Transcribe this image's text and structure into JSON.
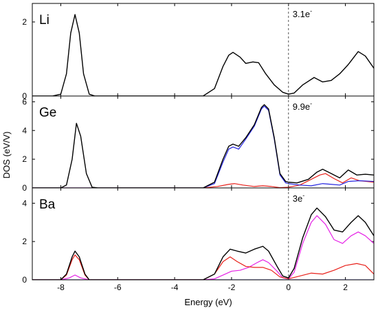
{
  "chart_data": {
    "type": "line",
    "xlabel": "Energy (eV)",
    "ylabel": "DOS (eV/V)",
    "xlim": [
      -9,
      3
    ],
    "xticks": [
      -8,
      -6,
      -4,
      -2,
      0,
      2
    ],
    "fermi_line": {
      "x": 0,
      "style": "dashed"
    },
    "series_colors": {
      "black": "#000000",
      "red": "#e8201a",
      "blue": "#2323e0",
      "magenta": "#e520e5"
    },
    "panels": [
      {
        "label": "Li",
        "electrons": "3.1e",
        "ylim": [
          0,
          2.5
        ],
        "yticks": [
          0,
          2
        ],
        "series": [
          {
            "color": "black",
            "points": [
              [
                -9,
                0
              ],
              [
                -8.3,
                0
              ],
              [
                -8.0,
                0.05
              ],
              [
                -7.8,
                0.6
              ],
              [
                -7.65,
                1.7
              ],
              [
                -7.5,
                2.2
              ],
              [
                -7.35,
                1.7
              ],
              [
                -7.2,
                0.6
              ],
              [
                -7.0,
                0.05
              ],
              [
                -6.8,
                0
              ],
              [
                -3,
                0
              ],
              [
                -2.6,
                0.2
              ],
              [
                -2.3,
                0.8
              ],
              [
                -2.1,
                1.1
              ],
              [
                -1.95,
                1.18
              ],
              [
                -1.7,
                1.05
              ],
              [
                -1.5,
                0.88
              ],
              [
                -1.25,
                0.92
              ],
              [
                -1.05,
                0.9
              ],
              [
                -0.8,
                0.6
              ],
              [
                -0.5,
                0.3
              ],
              [
                -0.2,
                0.1
              ],
              [
                0,
                0.05
              ],
              [
                0.2,
                0.08
              ],
              [
                0.5,
                0.3
              ],
              [
                0.9,
                0.5
              ],
              [
                1.2,
                0.38
              ],
              [
                1.5,
                0.42
              ],
              [
                1.8,
                0.6
              ],
              [
                2.1,
                0.85
              ],
              [
                2.45,
                1.2
              ],
              [
                2.7,
                1.08
              ],
              [
                3.0,
                0.75
              ]
            ]
          }
        ]
      },
      {
        "label": "Ge",
        "electrons": "9.9e",
        "ylim": [
          0,
          6.4
        ],
        "yticks": [
          0,
          2,
          4,
          6
        ],
        "series": [
          {
            "color": "black",
            "points": [
              [
                -9,
                0
              ],
              [
                -8.0,
                0
              ],
              [
                -7.8,
                0.2
              ],
              [
                -7.6,
                2.0
              ],
              [
                -7.45,
                4.5
              ],
              [
                -7.3,
                3.6
              ],
              [
                -7.1,
                1.0
              ],
              [
                -6.9,
                0.05
              ],
              [
                -6.7,
                0
              ],
              [
                -3.0,
                0
              ],
              [
                -2.6,
                0.4
              ],
              [
                -2.3,
                2.0
              ],
              [
                -2.1,
                2.9
              ],
              [
                -1.95,
                3.05
              ],
              [
                -1.75,
                2.9
              ],
              [
                -1.5,
                3.5
              ],
              [
                -1.2,
                4.4
              ],
              [
                -0.95,
                5.6
              ],
              [
                -0.85,
                5.8
              ],
              [
                -0.7,
                5.5
              ],
              [
                -0.5,
                3.5
              ],
              [
                -0.3,
                1.0
              ],
              [
                -0.1,
                0.45
              ],
              [
                0,
                0.4
              ],
              [
                0.3,
                0.35
              ],
              [
                0.7,
                0.6
              ],
              [
                1.0,
                1.1
              ],
              [
                1.2,
                1.3
              ],
              [
                1.5,
                1.0
              ],
              [
                1.8,
                0.7
              ],
              [
                2.1,
                1.25
              ],
              [
                2.4,
                0.9
              ],
              [
                2.7,
                0.95
              ],
              [
                3.0,
                0.9
              ]
            ]
          },
          {
            "color": "blue",
            "points": [
              [
                -9,
                0
              ],
              [
                -3.0,
                0
              ],
              [
                -2.6,
                0.3
              ],
              [
                -2.3,
                1.8
              ],
              [
                -2.1,
                2.7
              ],
              [
                -1.95,
                2.85
              ],
              [
                -1.75,
                2.7
              ],
              [
                -1.5,
                3.4
              ],
              [
                -1.2,
                4.3
              ],
              [
                -0.95,
                5.5
              ],
              [
                -0.85,
                5.7
              ],
              [
                -0.7,
                5.4
              ],
              [
                -0.5,
                3.4
              ],
              [
                -0.3,
                0.9
              ],
              [
                -0.1,
                0.35
              ],
              [
                0,
                0.3
              ],
              [
                0.4,
                0.2
              ],
              [
                0.8,
                0.15
              ],
              [
                1.2,
                0.3
              ],
              [
                1.5,
                0.25
              ],
              [
                1.8,
                0.2
              ],
              [
                2.1,
                0.45
              ],
              [
                2.5,
                0.5
              ],
              [
                3.0,
                0.45
              ]
            ]
          },
          {
            "color": "red",
            "points": [
              [
                -9,
                0
              ],
              [
                -3.0,
                0
              ],
              [
                -2.5,
                0.1
              ],
              [
                -2.1,
                0.25
              ],
              [
                -1.9,
                0.3
              ],
              [
                -1.6,
                0.2
              ],
              [
                -1.2,
                0.1
              ],
              [
                -0.9,
                0.15
              ],
              [
                -0.6,
                0.1
              ],
              [
                -0.3,
                0.02
              ],
              [
                0,
                0.05
              ],
              [
                0.4,
                0.2
              ],
              [
                0.8,
                0.6
              ],
              [
                1.1,
                0.9
              ],
              [
                1.3,
                1.0
              ],
              [
                1.6,
                0.65
              ],
              [
                1.9,
                0.35
              ],
              [
                2.2,
                0.7
              ],
              [
                2.5,
                0.5
              ],
              [
                3.0,
                0.4
              ]
            ]
          }
        ]
      },
      {
        "label": "Ba",
        "electrons": "3e",
        "ylim": [
          0,
          4.8
        ],
        "yticks": [
          0,
          2,
          4
        ],
        "series": [
          {
            "color": "black",
            "points": [
              [
                -9,
                0
              ],
              [
                -8.0,
                0
              ],
              [
                -7.8,
                0.3
              ],
              [
                -7.6,
                1.2
              ],
              [
                -7.5,
                1.5
              ],
              [
                -7.35,
                1.2
              ],
              [
                -7.15,
                0.3
              ],
              [
                -7.0,
                0
              ],
              [
                -3.0,
                0
              ],
              [
                -2.6,
                0.3
              ],
              [
                -2.3,
                1.2
              ],
              [
                -2.05,
                1.6
              ],
              [
                -1.8,
                1.5
              ],
              [
                -1.5,
                1.4
              ],
              [
                -1.2,
                1.6
              ],
              [
                -0.9,
                1.75
              ],
              [
                -0.7,
                1.5
              ],
              [
                -0.4,
                0.7
              ],
              [
                -0.2,
                0.2
              ],
              [
                0,
                0.1
              ],
              [
                0.2,
                0.6
              ],
              [
                0.5,
                2.2
              ],
              [
                0.8,
                3.4
              ],
              [
                1.0,
                3.75
              ],
              [
                1.3,
                3.3
              ],
              [
                1.6,
                2.6
              ],
              [
                1.9,
                2.5
              ],
              [
                2.2,
                3.0
              ],
              [
                2.45,
                3.35
              ],
              [
                2.7,
                3.0
              ],
              [
                3.0,
                2.3
              ]
            ]
          },
          {
            "color": "red",
            "points": [
              [
                -9,
                0
              ],
              [
                -8.0,
                0
              ],
              [
                -7.8,
                0.25
              ],
              [
                -7.6,
                1.05
              ],
              [
                -7.5,
                1.3
              ],
              [
                -7.35,
                1.05
              ],
              [
                -7.15,
                0.25
              ],
              [
                -7.0,
                0
              ],
              [
                -3.0,
                0
              ],
              [
                -2.6,
                0.3
              ],
              [
                -2.3,
                0.95
              ],
              [
                -2.05,
                1.2
              ],
              [
                -1.8,
                0.95
              ],
              [
                -1.5,
                0.7
              ],
              [
                -1.2,
                0.65
              ],
              [
                -0.9,
                0.65
              ],
              [
                -0.6,
                0.5
              ],
              [
                -0.3,
                0.15
              ],
              [
                0,
                0.05
              ],
              [
                0.4,
                0.2
              ],
              [
                0.8,
                0.35
              ],
              [
                1.2,
                0.3
              ],
              [
                1.6,
                0.5
              ],
              [
                2.0,
                0.75
              ],
              [
                2.4,
                0.85
              ],
              [
                2.7,
                0.75
              ],
              [
                3.0,
                0.3
              ]
            ]
          },
          {
            "color": "magenta",
            "points": [
              [
                -9,
                0
              ],
              [
                -8.0,
                0
              ],
              [
                -7.7,
                0.1
              ],
              [
                -7.5,
                0.25
              ],
              [
                -7.3,
                0.1
              ],
              [
                -7.0,
                0
              ],
              [
                -3.0,
                0
              ],
              [
                -2.6,
                0.05
              ],
              [
                -2.3,
                0.25
              ],
              [
                -2.0,
                0.45
              ],
              [
                -1.7,
                0.5
              ],
              [
                -1.4,
                0.65
              ],
              [
                -1.1,
                0.9
              ],
              [
                -0.9,
                1.05
              ],
              [
                -0.7,
                0.9
              ],
              [
                -0.4,
                0.45
              ],
              [
                -0.2,
                0.1
              ],
              [
                0,
                0.05
              ],
              [
                0.2,
                0.4
              ],
              [
                0.5,
                1.9
              ],
              [
                0.8,
                3.0
              ],
              [
                1.0,
                3.35
              ],
              [
                1.3,
                2.9
              ],
              [
                1.6,
                2.1
              ],
              [
                1.9,
                1.9
              ],
              [
                2.2,
                2.3
              ],
              [
                2.45,
                2.5
              ],
              [
                2.7,
                2.3
              ],
              [
                3.0,
                1.9
              ]
            ]
          },
          {
            "color": "blue",
            "points": [
              [
                -9,
                0
              ],
              [
                3.0,
                0
              ]
            ]
          }
        ]
      }
    ]
  }
}
